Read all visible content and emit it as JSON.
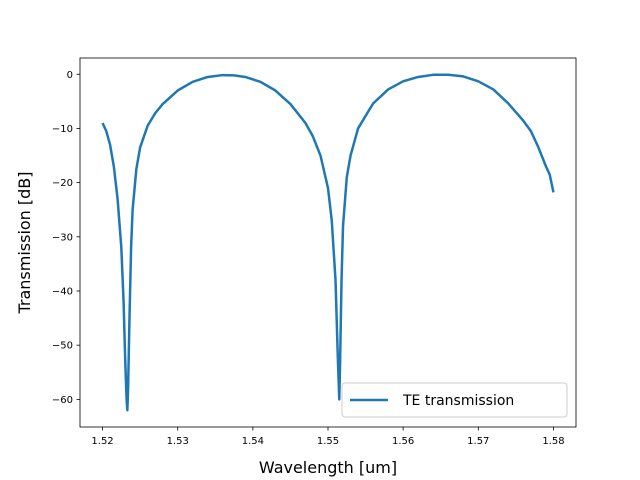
{
  "chart_data": {
    "type": "line",
    "title": "",
    "xlabel": "Wavelength [um]",
    "ylabel": "Transmission [dB]",
    "xlim": [
      1.517,
      1.583
    ],
    "ylim": [
      -65.1,
      3.0
    ],
    "xticks": [
      1.52,
      1.53,
      1.54,
      1.55,
      1.56,
      1.57,
      1.58
    ],
    "xtick_labels": [
      "1.52",
      "1.53",
      "1.54",
      "1.55",
      "1.56",
      "1.57",
      "1.58"
    ],
    "yticks": [
      0,
      -10,
      -20,
      -30,
      -40,
      -50,
      -60
    ],
    "ytick_labels": [
      "0",
      "−10",
      "−20",
      "−30",
      "−40",
      "−50",
      "−60"
    ],
    "grid": false,
    "legend": {
      "position": "lower-right"
    },
    "series": [
      {
        "name": "TE transmission",
        "color": "#1f77b4",
        "x": [
          1.52,
          1.5205,
          1.521,
          1.5215,
          1.522,
          1.5225,
          1.5228,
          1.523,
          1.5232,
          1.5233,
          1.5234,
          1.5236,
          1.5238,
          1.524,
          1.5245,
          1.525,
          1.526,
          1.527,
          1.528,
          1.53,
          1.532,
          1.534,
          1.536,
          1.5375,
          1.539,
          1.541,
          1.543,
          1.545,
          1.547,
          1.548,
          1.549,
          1.55,
          1.5505,
          1.551,
          1.5513,
          1.5515,
          1.5516,
          1.5518,
          1.552,
          1.5525,
          1.553,
          1.554,
          1.556,
          1.558,
          1.56,
          1.562,
          1.564,
          1.566,
          1.568,
          1.57,
          1.572,
          1.574,
          1.576,
          1.577,
          1.578,
          1.579,
          1.5795,
          1.58
        ],
        "y": [
          -9.0,
          -10.5,
          -13.0,
          -17.0,
          -23.0,
          -32.0,
          -42.0,
          -52.0,
          -60.0,
          -62.0,
          -58.0,
          -44.0,
          -32.0,
          -25.0,
          -17.5,
          -13.5,
          -9.5,
          -7.2,
          -5.5,
          -3.0,
          -1.4,
          -0.5,
          -0.15,
          -0.2,
          -0.5,
          -1.4,
          -3.0,
          -5.5,
          -9.0,
          -11.5,
          -15.0,
          -21.0,
          -27.0,
          -38.0,
          -52.0,
          -60.0,
          -54.0,
          -38.0,
          -28.0,
          -19.0,
          -15.0,
          -10.0,
          -5.4,
          -2.8,
          -1.3,
          -0.5,
          -0.1,
          -0.1,
          -0.4,
          -1.3,
          -2.8,
          -5.4,
          -8.6,
          -10.5,
          -13.5,
          -17.0,
          -18.5,
          -21.8
        ]
      }
    ]
  }
}
